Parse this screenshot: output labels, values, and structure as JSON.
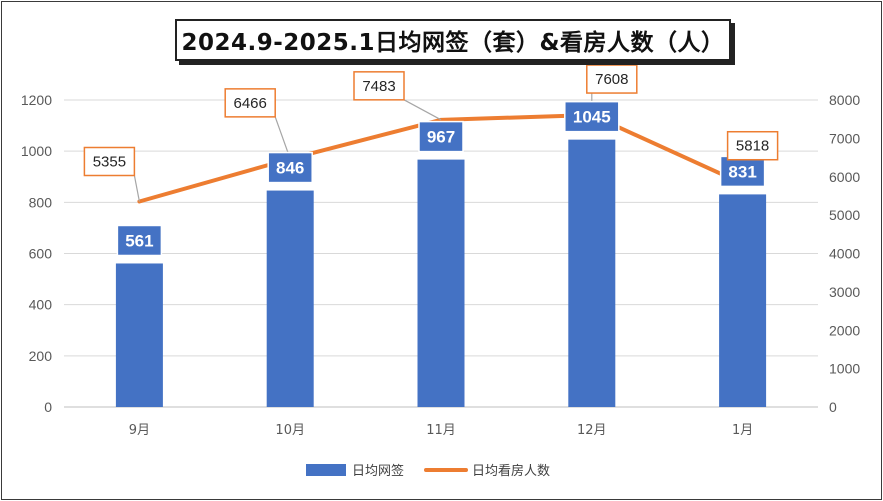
{
  "chart_data": {
    "type": "bar",
    "title": "2024.9-2025.1日均网签（套）&看房人数（人）",
    "categories": [
      "9月",
      "10月",
      "11月",
      "12月",
      "1月"
    ],
    "series": [
      {
        "name": "日均网签",
        "type": "bar",
        "axis": "left",
        "values": [
          561,
          846,
          967,
          1045,
          831
        ],
        "color": "#4472C4"
      },
      {
        "name": "日均看房人数",
        "type": "line",
        "axis": "right",
        "values": [
          5355,
          6466,
          7483,
          7608,
          5818
        ],
        "color": "#ED7D31"
      }
    ],
    "y_left": {
      "ylim": [
        0,
        1200
      ],
      "ticks": [
        0,
        200,
        400,
        600,
        800,
        1000,
        1200
      ]
    },
    "y_right": {
      "ylim": [
        0,
        8000
      ],
      "ticks": [
        0,
        1000,
        2000,
        3000,
        4000,
        5000,
        6000,
        7000,
        8000
      ]
    },
    "grid": true,
    "legend_position": "bottom"
  }
}
